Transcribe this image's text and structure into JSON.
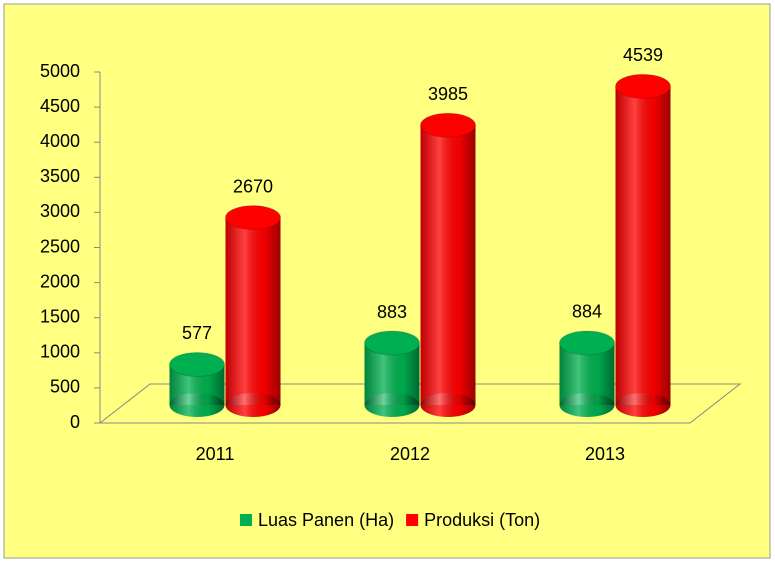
{
  "chart_data": {
    "type": "bar3d",
    "categories": [
      "2011",
      "2012",
      "2013"
    ],
    "series": [
      {
        "name": "Luas Panen (Ha)",
        "color": "#00b050",
        "values": [
          577,
          883,
          884
        ]
      },
      {
        "name": "Produksi (Ton)",
        "color": "#ff0000",
        "values": [
          2670,
          3985,
          4539
        ]
      }
    ],
    "ylim": [
      0,
      5000
    ],
    "yticks": [
      0,
      500,
      1000,
      1500,
      2000,
      2500,
      3000,
      3500,
      4000,
      4500,
      5000
    ],
    "legend": "bottom"
  }
}
